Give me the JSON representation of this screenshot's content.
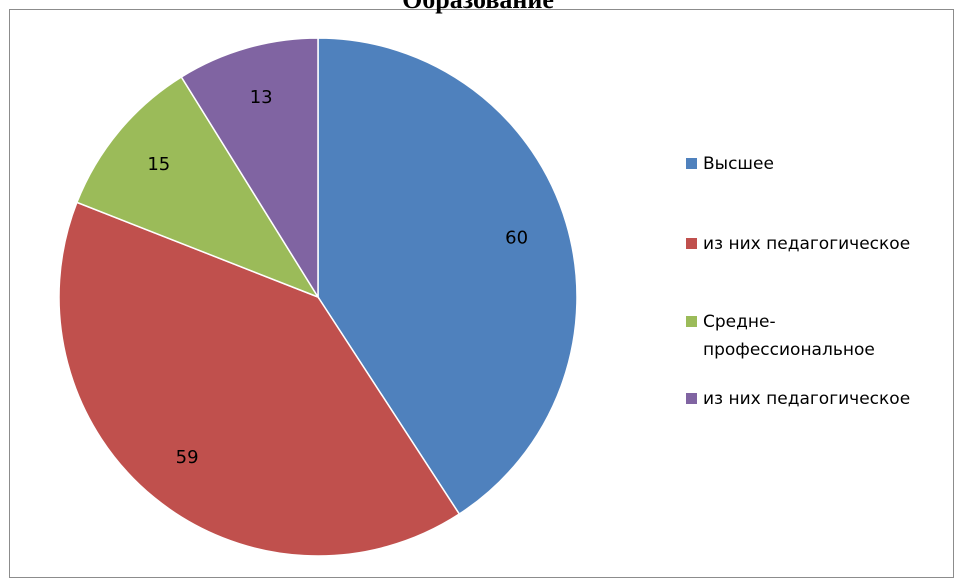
{
  "chart_data": {
    "type": "pie",
    "title": "Образование",
    "categories": [
      "Высшее",
      "из них педагогическое",
      "Средне-профессиональное",
      "из них педагогическое"
    ],
    "values": [
      60,
      59,
      15,
      13
    ],
    "colors": [
      "#4f81bd",
      "#c0504d",
      "#9bbb59",
      "#8064a2"
    ],
    "legend_position": "right",
    "data_labels": true
  },
  "legend": {
    "items": [
      {
        "label": "Высшее",
        "color": "#4f81bd"
      },
      {
        "label": "из них педагогическое",
        "color": "#c0504d"
      },
      {
        "label": "Средне-профессиональное",
        "color": "#9bbb59"
      },
      {
        "label": "из них педагогическое",
        "color": "#8064a2"
      }
    ]
  }
}
